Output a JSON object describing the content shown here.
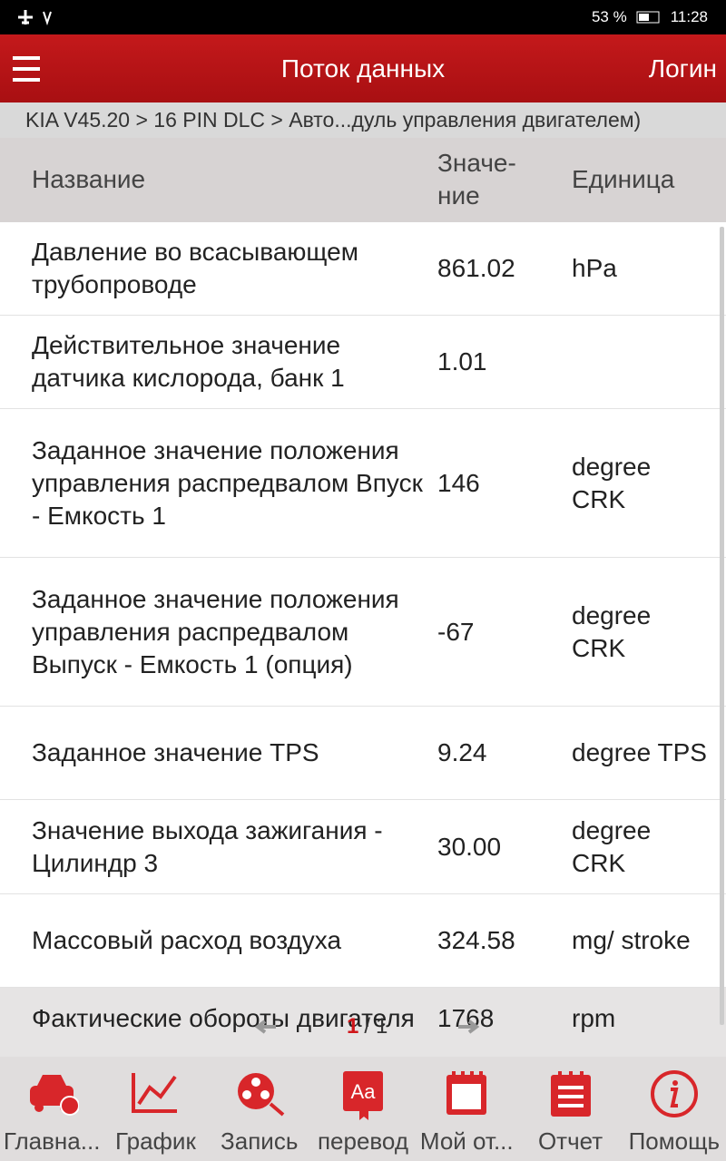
{
  "status_bar": {
    "battery": "53 %",
    "time": "11:28"
  },
  "header": {
    "title": "Поток данных",
    "login": "Логин"
  },
  "breadcrumb": "KIA V45.20 > 16 PIN DLC > Авто...дуль управления двигателем)",
  "table": {
    "columns": [
      [
        "Название"
      ],
      [
        "Значе-",
        "ние"
      ],
      [
        "Единица"
      ]
    ],
    "rows": [
      [
        "Давление во всасывающем трубопроводе",
        "861.02",
        "hPa"
      ],
      [
        "Действительное значение датчика кислорода, банк 1",
        "1.01",
        ""
      ],
      [
        "Заданное значение положения управления распредвалом Впуск - Емкость 1",
        "146",
        "degree CRK"
      ],
      [
        "Заданное значение положения управления распредвалом Выпуск - Емкость 1 (опция)",
        "-67",
        "degree CRK"
      ],
      [
        "Заданное значение TPS",
        "9.24",
        "degree TPS"
      ],
      [
        "Значение выхода зажигания - Цилиндр 3",
        "30.00",
        "degree CRK"
      ],
      [
        "Массовый расход воздуха",
        "324.58",
        "mg/ stroke"
      ],
      [
        "Фактические обороты двигателя",
        "1768",
        "rpm"
      ]
    ]
  },
  "pager": {
    "current": "1",
    "separator": "/",
    "total": "1"
  },
  "nav": {
    "icon_text": "Aa",
    "items": [
      "Главна...",
      "График",
      "Запись",
      "перевод",
      "Мой от...",
      "Отчет",
      "Помощь"
    ]
  }
}
